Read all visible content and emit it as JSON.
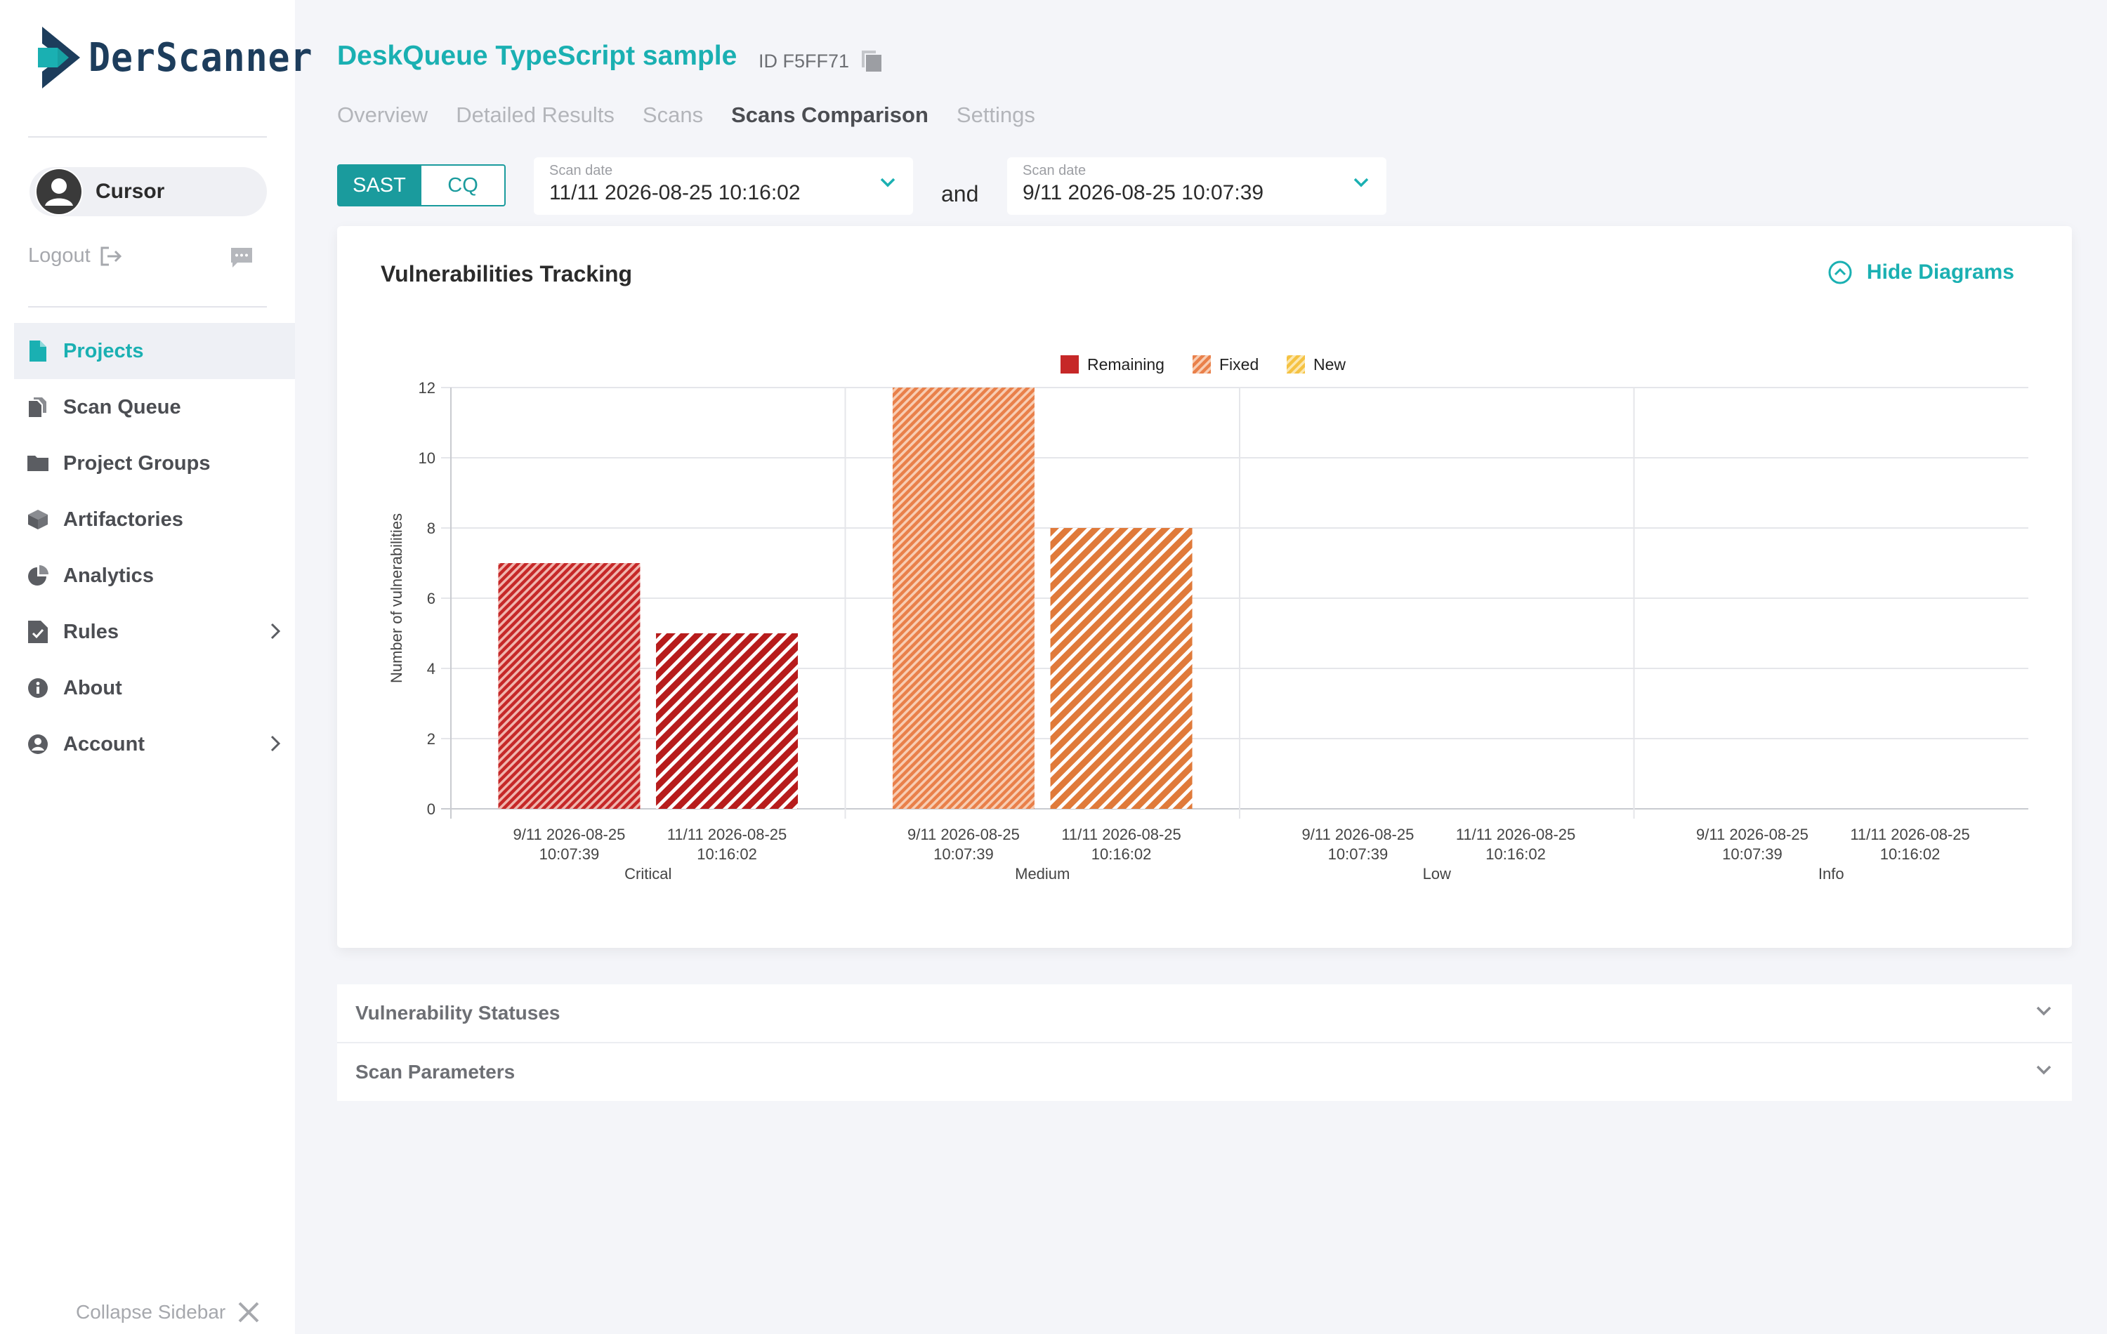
{
  "brand": {
    "name": "DerScanner"
  },
  "user": {
    "name": "Cursor"
  },
  "logout_label": "Logout",
  "nav": [
    {
      "label": "Projects",
      "icon": "file-icon",
      "active": true
    },
    {
      "label": "Scan Queue",
      "icon": "documents-icon"
    },
    {
      "label": "Project Groups",
      "icon": "folder-icon"
    },
    {
      "label": "Artifactories",
      "icon": "box-icon"
    },
    {
      "label": "Analytics",
      "icon": "pie-chart-icon"
    },
    {
      "label": "Rules",
      "icon": "clipboard-check-icon",
      "expandable": true
    },
    {
      "label": "About",
      "icon": "info-icon"
    },
    {
      "label": "Account",
      "icon": "user-circle-icon",
      "expandable": true
    }
  ],
  "collapse_label": "Collapse Sidebar",
  "project": {
    "title": "DeskQueue TypeScript sample",
    "id_label": "ID F5FF71"
  },
  "tabs": [
    "Overview",
    "Detailed Results",
    "Scans",
    "Scans Comparison",
    "Settings"
  ],
  "active_tab": "Scans Comparison",
  "toggle": {
    "sast": "SAST",
    "cq": "CQ",
    "selected": "SAST"
  },
  "scan_a": {
    "label": "Scan date",
    "value": "11/11 2026-08-25 10:16:02"
  },
  "and_label": "and",
  "scan_b": {
    "label": "Scan date",
    "value": "9/11 2026-08-25 10:07:39"
  },
  "card": {
    "title": "Vulnerabilities Tracking",
    "hide_label": "Hide Diagrams"
  },
  "chart_data": {
    "type": "bar",
    "title": "",
    "ylabel": "Number of vulnerabilities",
    "ylim": [
      0,
      12
    ],
    "yticks": [
      0,
      2,
      4,
      6,
      8,
      10,
      12
    ],
    "legend": {
      "placement": "top-center",
      "entries": [
        {
          "name": "Remaining",
          "color": "#c62828"
        },
        {
          "name": "Fixed",
          "color": "#e9804a"
        },
        {
          "name": "New",
          "color": "#f5c242"
        }
      ]
    },
    "groups": [
      {
        "name": "Critical",
        "color": "#c62828",
        "bars": [
          {
            "line1": "9/11 2026-08-25",
            "line2": "10:07:39",
            "value": 7
          },
          {
            "line1": "11/11 2026-08-25",
            "line2": "10:16:02",
            "value": 5
          }
        ]
      },
      {
        "name": "Medium",
        "color": "#e9804a",
        "bars": [
          {
            "line1": "9/11 2026-08-25",
            "line2": "10:07:39",
            "value": 12
          },
          {
            "line1": "11/11 2026-08-25",
            "line2": "10:16:02",
            "value": 8
          }
        ]
      },
      {
        "name": "Low",
        "color": "#e9804a",
        "bars": [
          {
            "line1": "9/11 2026-08-25",
            "line2": "10:07:39",
            "value": 0
          },
          {
            "line1": "11/11 2026-08-25",
            "line2": "10:16:02",
            "value": 0
          }
        ]
      },
      {
        "name": "Info",
        "color": "#e9804a",
        "bars": [
          {
            "line1": "9/11 2026-08-25",
            "line2": "10:07:39",
            "value": 0
          },
          {
            "line1": "11/11 2026-08-25",
            "line2": "10:16:02",
            "value": 0
          }
        ]
      }
    ]
  },
  "panels": [
    "Vulnerability Statuses",
    "Scan Parameters"
  ],
  "colors": {
    "accent": "#1ab0b2",
    "accent_dark": "#1a9b9d"
  }
}
